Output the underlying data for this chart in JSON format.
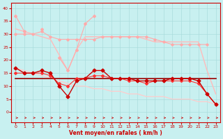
{
  "xlabel": "Vent moyen/en rafales ( km/h )",
  "bg_color": "#c8f0f0",
  "grid_color": "#aadddd",
  "x": [
    0,
    1,
    2,
    3,
    4,
    5,
    6,
    7,
    8,
    9,
    10,
    11,
    12,
    13,
    14,
    15,
    16,
    17,
    18,
    19,
    20,
    21,
    22,
    23
  ],
  "line_jagged_light": [
    37,
    31,
    null,
    32,
    null,
    21,
    16,
    24,
    34,
    37,
    null,
    null,
    null,
    null,
    null,
    null,
    null,
    null,
    null,
    null,
    null,
    null,
    null,
    null
  ],
  "line_upper_band": [
    32,
    31,
    30,
    29,
    28,
    22,
    16,
    24,
    29,
    29,
    29,
    29,
    29,
    29,
    29,
    28,
    27,
    27,
    27,
    27,
    27,
    27,
    16,
    7
  ],
  "line_mid_band": [
    30,
    30,
    30,
    31,
    29,
    28,
    28,
    28,
    28,
    28,
    29,
    29,
    29,
    29,
    29,
    29,
    28,
    27,
    26,
    26,
    26,
    26,
    26,
    null
  ],
  "line_diagonal": [
    17,
    16,
    15,
    14,
    13,
    12,
    11,
    10,
    10,
    9,
    9,
    8,
    8,
    7,
    7,
    6,
    6,
    6,
    5,
    5,
    5,
    4,
    4,
    3
  ],
  "line_markers1": [
    17,
    15,
    15,
    16,
    15,
    10,
    6,
    12,
    13,
    16,
    16,
    13,
    13,
    13,
    12,
    12,
    12,
    12,
    13,
    13,
    13,
    12,
    7,
    3
  ],
  "line_flat": [
    13,
    13,
    13,
    13,
    13,
    13,
    13,
    13,
    13,
    13,
    13,
    13,
    13,
    13,
    13,
    13,
    13,
    13,
    13,
    13,
    13,
    13,
    13,
    13
  ],
  "line_markers2": [
    15,
    15,
    15,
    15,
    14,
    11,
    10,
    13,
    13,
    14,
    14,
    13,
    13,
    12,
    12,
    11,
    12,
    12,
    12,
    12,
    12,
    11,
    7,
    3
  ],
  "ylim": [
    -4,
    42
  ],
  "xlim": [
    -0.5,
    23.5
  ],
  "yticks": [
    0,
    5,
    10,
    15,
    20,
    25,
    30,
    35,
    40
  ],
  "xticks": [
    0,
    1,
    2,
    3,
    4,
    5,
    6,
    7,
    8,
    9,
    10,
    11,
    12,
    13,
    14,
    15,
    16,
    17,
    18,
    19,
    20,
    21,
    22,
    23
  ]
}
